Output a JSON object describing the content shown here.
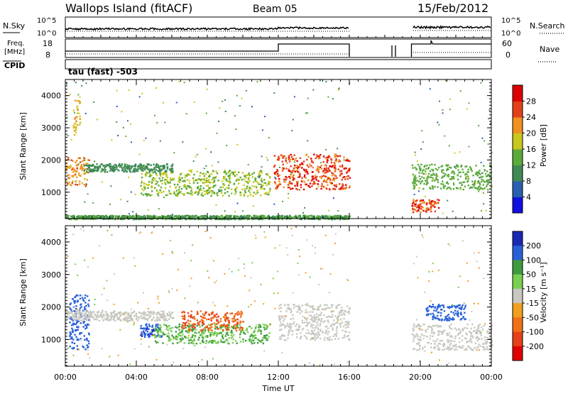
{
  "header": {
    "station": "Wallops Island (fitACF)",
    "beam": "Beam 05",
    "date": "15/Feb/2012"
  },
  "top_panels": {
    "nsky_label": "N.Sky",
    "nsearch_label": "N.Search",
    "noise_ticks": [
      "10^5",
      "10^0"
    ],
    "freq_label": "Freq.",
    "freq_unit": "[MHz]",
    "freq_ticks": [
      "18",
      "8"
    ],
    "nave_label": "Nave",
    "nave_ticks": [
      "60",
      "0"
    ],
    "cpid_label": "CPID",
    "cpid_value": "tau (fast) -503"
  },
  "time_axis": {
    "ticks": [
      "00:00",
      "04:00",
      "08:00",
      "12:00",
      "16:00",
      "20:00",
      "00:00"
    ],
    "xlabel": "Time UT"
  },
  "chart_data": [
    {
      "type": "heatmap",
      "title": "",
      "xlabel": "Time UT",
      "ylabel": "Slant Range [km]",
      "xlim": [
        0,
        24
      ],
      "ylim": [
        180,
        4500
      ],
      "yticks": [
        "1000",
        "2000",
        "3000",
        "4000"
      ],
      "colorbar": {
        "label": "Power [dB]",
        "ticks": [
          "4",
          "8",
          "12",
          "16",
          "20",
          "24",
          "28"
        ],
        "colors": [
          "#1010e0",
          "#2a5fb0",
          "#3e8a55",
          "#5aaa3c",
          "#c8c81e",
          "#f09020",
          "#e44018",
          "#dd0000"
        ]
      },
      "no_data_intervals_hours": [
        [
          16.0,
          19.5
        ]
      ],
      "echo_regions": [
        {
          "hours": [
            0.0,
            1.3
          ],
          "range_km": [
            1200,
            2100
          ],
          "power_db": 22
        },
        {
          "hours": [
            0.4,
            0.8
          ],
          "range_km": [
            2800,
            3900
          ],
          "power_db": 20
        },
        {
          "hours": [
            4.2,
            11.5
          ],
          "range_km": [
            900,
            1700
          ],
          "power_db": 16
        },
        {
          "hours": [
            1.0,
            6.0
          ],
          "range_km": [
            1650,
            1900
          ],
          "power_db": 10
        },
        {
          "hours": [
            11.7,
            16.0
          ],
          "range_km": [
            1100,
            2200
          ],
          "power_db": 26
        },
        {
          "hours": [
            19.5,
            21.0
          ],
          "range_km": [
            400,
            800
          ],
          "power_db": 26
        },
        {
          "hours": [
            19.5,
            24.0
          ],
          "range_km": [
            1100,
            1900
          ],
          "power_db": 14
        },
        {
          "hours": [
            0.0,
            16.0
          ],
          "range_km": [
            180,
            300
          ],
          "power_db": 12
        }
      ]
    },
    {
      "type": "heatmap",
      "title": "",
      "xlabel": "Time UT",
      "ylabel": "Slant Range [km]",
      "xlim": [
        0,
        24
      ],
      "ylim": [
        180,
        4500
      ],
      "yticks": [
        "1000",
        "2000",
        "3000",
        "4000"
      ],
      "colorbar": {
        "label": "Velocity [m s⁻¹]",
        "ticks": [
          "200",
          "100",
          "50",
          "15",
          "-15",
          "-50",
          "-100",
          "-200"
        ],
        "colors": [
          "#1a28b4",
          "#2860d8",
          "#3c9c3c",
          "#78d050",
          "#c8c8c0",
          "#f0a020",
          "#f07018",
          "#e84018",
          "#e00000"
        ]
      },
      "no_data_intervals_hours": [
        [
          16.0,
          19.5
        ]
      ],
      "echo_regions": [
        {
          "hours": [
            0.2,
            1.3
          ],
          "range_km": [
            700,
            2400
          ],
          "velocity_ms": 150
        },
        {
          "hours": [
            0.0,
            6.0
          ],
          "range_km": [
            1600,
            1900
          ],
          "velocity_ms": 0
        },
        {
          "hours": [
            4.2,
            5.5
          ],
          "range_km": [
            1100,
            1500
          ],
          "velocity_ms": 180
        },
        {
          "hours": [
            5.0,
            11.5
          ],
          "range_km": [
            900,
            1500
          ],
          "velocity_ms": 50
        },
        {
          "hours": [
            6.5,
            10.0
          ],
          "range_km": [
            1300,
            1900
          ],
          "velocity_ms": -100
        },
        {
          "hours": [
            12.0,
            16.0
          ],
          "range_km": [
            1000,
            2100
          ],
          "velocity_ms": 0
        },
        {
          "hours": [
            19.5,
            24.0
          ],
          "range_km": [
            700,
            1500
          ],
          "velocity_ms": 0
        },
        {
          "hours": [
            20.3,
            22.5
          ],
          "range_km": [
            1600,
            2100
          ],
          "velocity_ms": 120
        }
      ]
    }
  ]
}
